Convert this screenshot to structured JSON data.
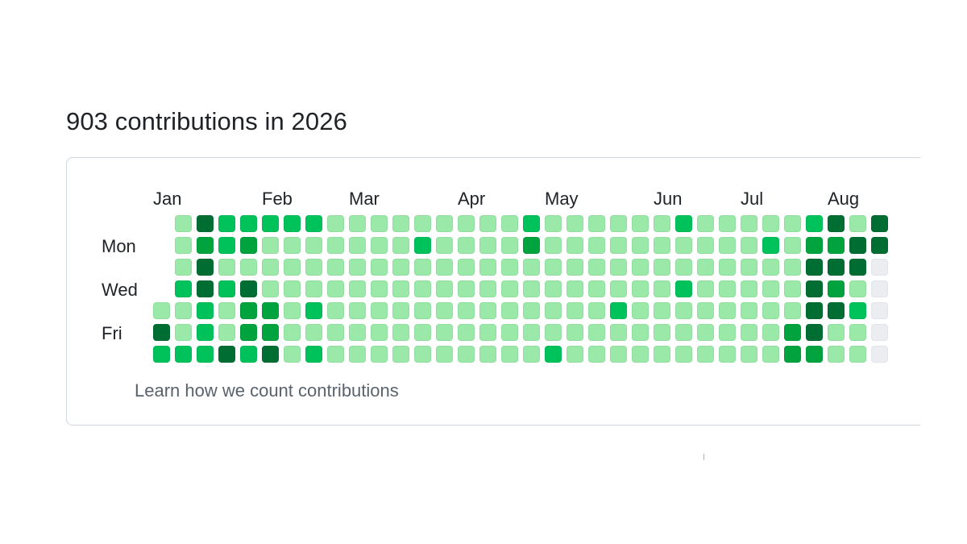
{
  "header": {
    "title": "903 contributions in 2026"
  },
  "calendar": {
    "months": [
      {
        "label": "Jan",
        "week": 0
      },
      {
        "label": "Feb",
        "week": 5
      },
      {
        "label": "Mar",
        "week": 9
      },
      {
        "label": "Apr",
        "week": 14
      },
      {
        "label": "May",
        "week": 18
      },
      {
        "label": "Jun",
        "week": 23
      },
      {
        "label": "Jul",
        "week": 27
      },
      {
        "label": "Aug",
        "week": 31
      }
    ],
    "day_labels": [
      {
        "label": "Mon",
        "row": 1
      },
      {
        "label": "Wed",
        "row": 3
      },
      {
        "label": "Fri",
        "row": 5
      }
    ],
    "colors": [
      "#ebedf0",
      "#9be9a8",
      "#00c25a",
      "#00a33d",
      "#006d32"
    ],
    "weeks": [
      [
        -1,
        -1,
        -1,
        -1,
        1,
        4,
        2
      ],
      [
        1,
        1,
        1,
        2,
        1,
        1,
        2
      ],
      [
        4,
        3,
        4,
        4,
        2,
        2,
        2
      ],
      [
        2,
        2,
        1,
        2,
        1,
        1,
        4
      ],
      [
        2,
        3,
        1,
        4,
        3,
        3,
        2
      ],
      [
        2,
        1,
        1,
        1,
        3,
        3,
        4
      ],
      [
        2,
        1,
        1,
        1,
        1,
        1,
        1
      ],
      [
        2,
        1,
        1,
        1,
        2,
        1,
        2
      ],
      [
        1,
        1,
        1,
        1,
        1,
        1,
        1
      ],
      [
        1,
        1,
        1,
        1,
        1,
        1,
        1
      ],
      [
        1,
        1,
        1,
        1,
        1,
        1,
        1
      ],
      [
        1,
        1,
        1,
        1,
        1,
        1,
        1
      ],
      [
        1,
        2,
        1,
        1,
        1,
        1,
        1
      ],
      [
        1,
        1,
        1,
        1,
        1,
        1,
        1
      ],
      [
        1,
        1,
        1,
        1,
        1,
        1,
        1
      ],
      [
        1,
        1,
        1,
        1,
        1,
        1,
        1
      ],
      [
        1,
        1,
        1,
        1,
        1,
        1,
        1
      ],
      [
        2,
        3,
        1,
        1,
        1,
        1,
        1
      ],
      [
        1,
        1,
        1,
        1,
        1,
        1,
        2
      ],
      [
        1,
        1,
        1,
        1,
        1,
        1,
        1
      ],
      [
        1,
        1,
        1,
        1,
        1,
        1,
        1
      ],
      [
        1,
        1,
        1,
        1,
        2,
        1,
        1
      ],
      [
        1,
        1,
        1,
        1,
        1,
        1,
        1
      ],
      [
        1,
        1,
        1,
        1,
        1,
        1,
        1
      ],
      [
        2,
        1,
        1,
        2,
        1,
        1,
        1
      ],
      [
        1,
        1,
        1,
        1,
        1,
        1,
        1
      ],
      [
        1,
        1,
        1,
        1,
        1,
        1,
        1
      ],
      [
        1,
        1,
        1,
        1,
        1,
        1,
        1
      ],
      [
        1,
        2,
        1,
        1,
        1,
        1,
        1
      ],
      [
        1,
        1,
        1,
        1,
        1,
        3,
        3
      ],
      [
        2,
        3,
        4,
        4,
        4,
        4,
        3
      ],
      [
        4,
        3,
        4,
        3,
        4,
        1,
        1
      ],
      [
        1,
        4,
        4,
        1,
        2,
        1,
        1
      ],
      [
        4,
        4,
        0,
        0,
        0,
        0,
        0
      ]
    ]
  },
  "footer": {
    "link_label": "Learn how we count contributions"
  }
}
